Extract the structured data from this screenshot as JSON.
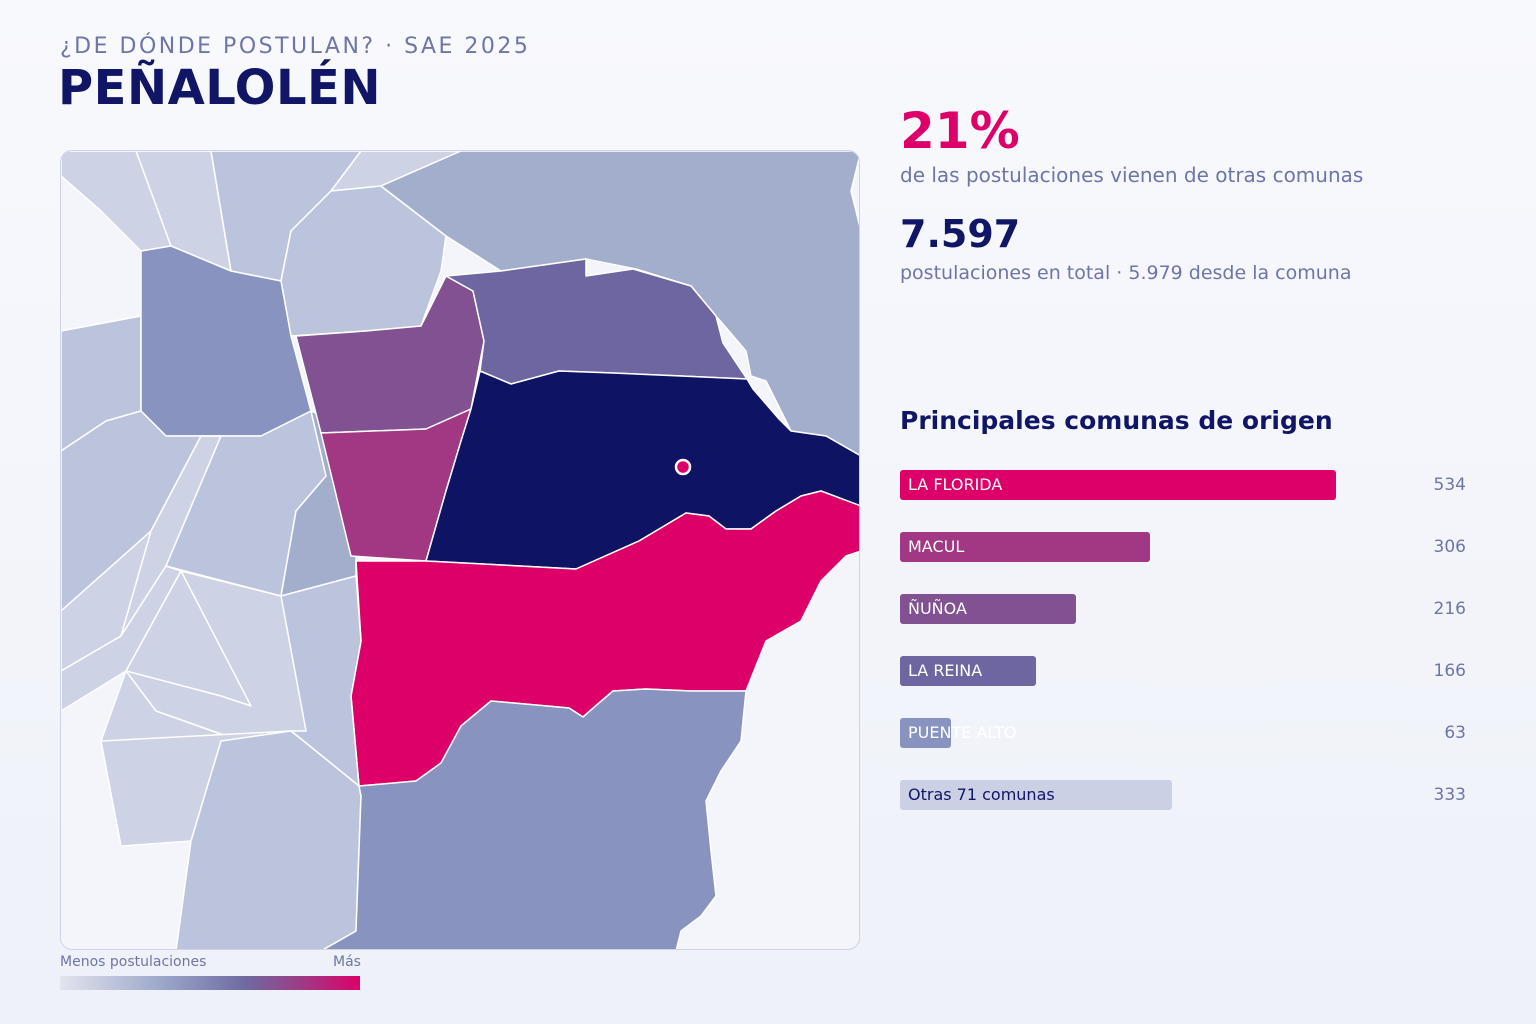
{
  "header": {
    "kicker": "¿DE DÓNDE POSTULAN? · SAE 2025",
    "title": "PEÑALOLÉN"
  },
  "stats": {
    "pct_value": "21%",
    "pct_label": "de las postulaciones vienen de otras comunas",
    "total_value": "7.597",
    "total_label": "postulaciones en total · 5.979 desde la comuna"
  },
  "legend": {
    "low_label": "Menos postulaciones",
    "high_label": "Más"
  },
  "ranking": {
    "title": "Principales comunas de origen",
    "items": [
      {
        "label": "LA FLORIDA",
        "value": 534,
        "color": "#dd0068",
        "text_color": "#ffffff"
      },
      {
        "label": "MACUL",
        "value": 306,
        "color": "#a23784",
        "text_color": "#ffffff"
      },
      {
        "label": "ÑUÑOA",
        "value": 216,
        "color": "#825192",
        "text_color": "#ffffff"
      },
      {
        "label": "LA REINA",
        "value": 166,
        "color": "#6e66a0",
        "text_color": "#ffffff"
      },
      {
        "label": "PUENTE ALTO",
        "value": 63,
        "color": "#8894bf",
        "text_color": "#ffffff"
      },
      {
        "label": "Otras 71 comunas",
        "value": 333,
        "color": "#cbd0e4",
        "text_color": "#111566"
      }
    ]
  },
  "map": {
    "colors": {
      "home": "#0e1363",
      "top": "#dd0068",
      "second": "#a23784",
      "third": "#825192",
      "fourth": "#6e66a0",
      "mid": "#8894bf",
      "light": "#a3aecc",
      "lighter": "#bcc3dc",
      "lightest": "#cdd2e4",
      "marker": "#dd0068"
    }
  }
}
